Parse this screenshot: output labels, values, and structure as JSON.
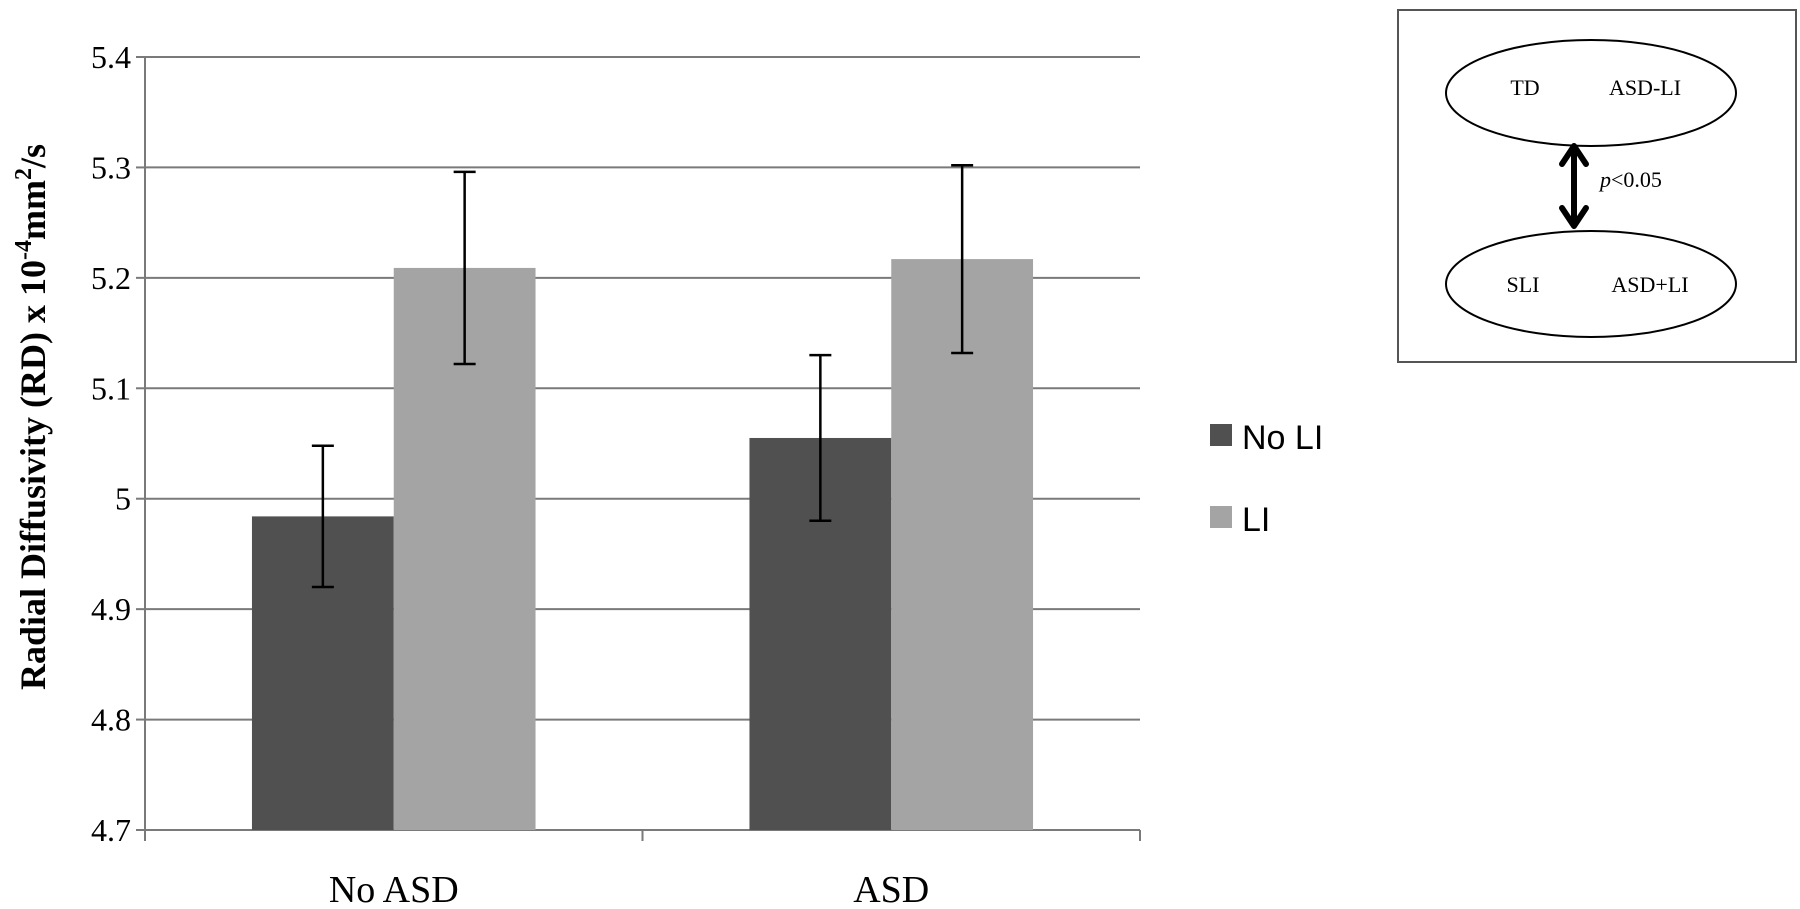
{
  "chart_data": {
    "type": "bar",
    "categories": [
      "No ASD",
      "ASD"
    ],
    "series": [
      {
        "name": "No LI",
        "values": [
          4.984,
          5.055
        ],
        "errors": [
          0.064,
          0.075
        ],
        "color": "#505050"
      },
      {
        "name": "LI",
        "values": [
          5.209,
          5.217
        ],
        "errors": [
          0.087,
          0.085
        ],
        "color": "#a4a4a4"
      }
    ],
    "ylim": [
      4.7,
      5.4
    ],
    "yticks": [
      "4.7",
      "4.8",
      "4.9",
      "5",
      "5.1",
      "5.2",
      "5.3",
      "5.4"
    ],
    "ylabel_prefix": "Radial Diffusivity (RD) x 10",
    "ylabel_exp1": "-4",
    "ylabel_mid": "mm",
    "ylabel_exp2": "2",
    "ylabel_suffix": "/s",
    "grid": true,
    "legend_position": "right"
  },
  "inset": {
    "top_group": [
      "TD",
      "ASD-LI"
    ],
    "bottom_group": [
      "SLI",
      "ASD+LI"
    ],
    "p_symbol": "p",
    "p_rest": "<0.05"
  }
}
